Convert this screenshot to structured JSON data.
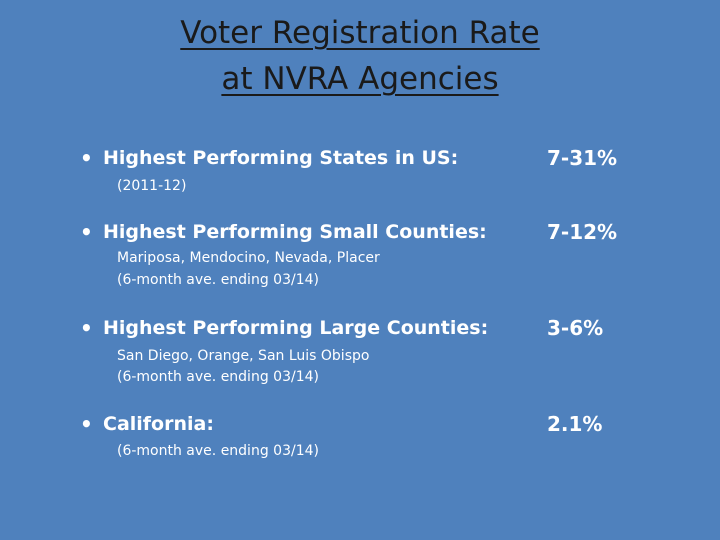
{
  "slide": {
    "title_line1": "Voter Registration Rate",
    "title_line2": "at NVRA Agencies",
    "items": [
      {
        "label": "Highest Performing States in US:",
        "value": "7-31%",
        "notes": [
          "(2011-12)"
        ]
      },
      {
        "label": "Highest Performing Small Counties:",
        "value": "7-12%",
        "notes": [
          "Mariposa, Mendocino, Nevada, Placer",
          "(6-month ave. ending 03/14)"
        ]
      },
      {
        "label": "Highest Performing Large Counties:",
        "value": "3-6%",
        "notes": [
          "San Diego, Orange, San Luis Obispo",
          "(6-month ave. ending 03/14)"
        ]
      },
      {
        "label": "California:",
        "value": "2.1%",
        "notes": [
          "(6-month ave. ending 03/14)"
        ]
      }
    ],
    "bullet_glyph": "•",
    "colors": {
      "background": "#4f81bd",
      "title": "#1a1a1a",
      "text": "#ffffff"
    }
  }
}
